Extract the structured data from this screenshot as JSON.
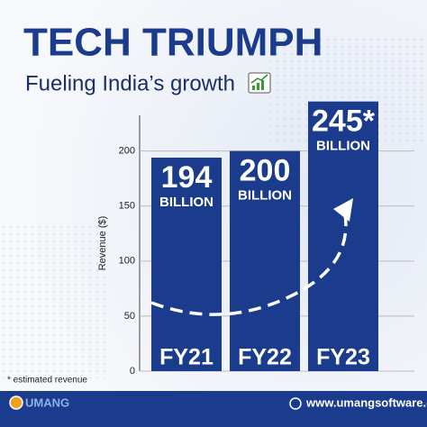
{
  "title": "TECH TRIUMPH",
  "subtitle": "Fueling India’s growth",
  "chart_data": {
    "type": "bar",
    "categories": [
      "FY21",
      "FY22",
      "FY23"
    ],
    "values": [
      194,
      200,
      245
    ],
    "value_labels": [
      "194",
      "200",
      "245*"
    ],
    "value_unit": "BILLION",
    "color": "#1b3c8c",
    "y_label": "Revenue ($)",
    "ylim": [
      0,
      230
    ],
    "yticks": [
      0,
      50,
      100,
      150,
      200
    ],
    "grid": true
  },
  "footnote": "* estimated revenue",
  "footer": {
    "brand": "UMANG",
    "website": "www.umangsoftware.com"
  }
}
